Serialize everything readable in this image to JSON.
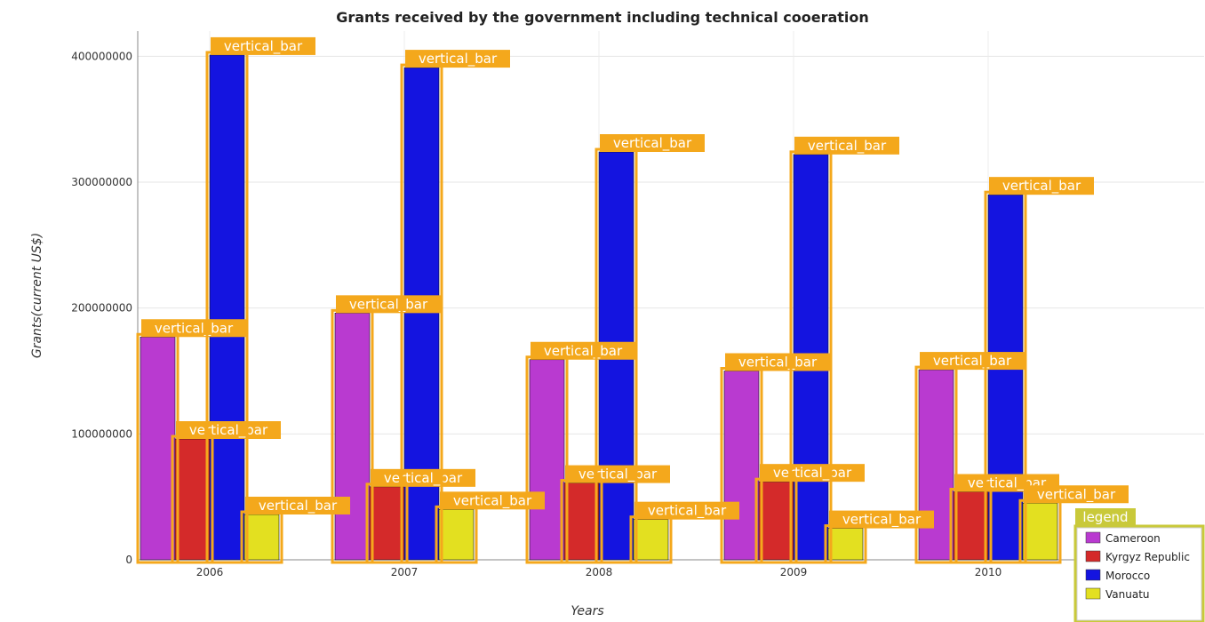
{
  "chart_data": {
    "type": "bar",
    "title": "Grants received by the government including technical cooeration",
    "xlabel": "Years",
    "ylabel": "Grants(current US$)",
    "categories": [
      "2006",
      "2007",
      "2008",
      "2009",
      "2010"
    ],
    "ylim": [
      0,
      420000000
    ],
    "yticks": [
      0,
      100000000,
      200000000,
      300000000,
      400000000
    ],
    "ytick_labels": [
      "0",
      "100000000",
      "200000000",
      "300000000",
      "400000000"
    ],
    "grid": true,
    "legend_position": "bottom-right",
    "series": [
      {
        "name": "Cameroon",
        "color": "#b93ad0",
        "values": [
          177000000,
          196000000,
          159000000,
          150000000,
          151000000
        ]
      },
      {
        "name": "Kyrgyz Republic",
        "color": "#d42a2a",
        "values": [
          96000000,
          58000000,
          61000000,
          62000000,
          54000000
        ]
      },
      {
        "name": "Morocco",
        "color": "#1414e0",
        "values": [
          401000000,
          391000000,
          324000000,
          322000000,
          290000000
        ]
      },
      {
        "name": "Vanuatu",
        "color": "#e3e020",
        "values": [
          36000000,
          40000000,
          32000000,
          25000000,
          45000000
        ]
      }
    ]
  },
  "annotation_label": "vertical_bar",
  "legend_box_label": "legend",
  "highlight_color": "#f4a81c"
}
